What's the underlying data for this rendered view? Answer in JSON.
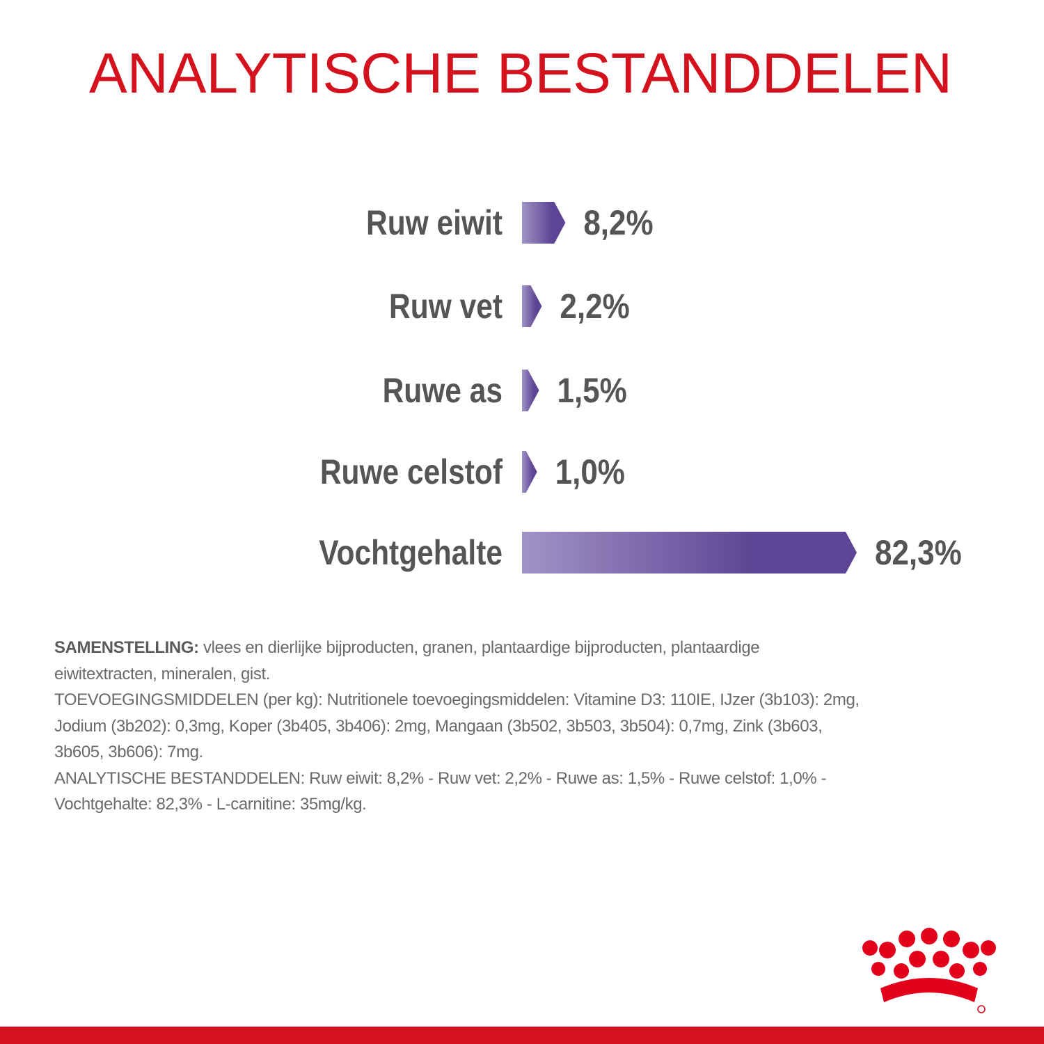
{
  "chart_data": {
    "type": "bar",
    "orientation": "horizontal",
    "title": "ANALYTISCHE BESTANDDELEN",
    "categories": [
      "Ruw eiwit",
      "Ruw vet",
      "Ruwe as",
      "Ruwe celstof",
      "Vochtgehalte"
    ],
    "values": [
      8.2,
      2.2,
      1.5,
      1.0,
      82.3
    ],
    "value_labels": [
      "8,2%",
      "2,2%",
      "1,5%",
      "1,0%",
      "82,3%"
    ],
    "colors": [
      "#a193c6",
      "#5d4494"
    ]
  },
  "composition": {
    "label": "SAMENSTELLING:",
    "lines": [
      "vlees en dierlijke bijproducten, granen, plantaardige bijproducten, plantaardige",
      "eiwitextracten, mineralen, gist.",
      "TOEVOEGINGSMIDDELEN (per kg): Nutritionele toevoegingsmiddelen: Vitamine D3: 110IE, IJzer (3b103): 2mg,",
      "Jodium (3b202): 0,3mg, Koper (3b405, 3b406): 2mg, Mangaan (3b502, 3b503, 3b504): 0,7mg, Zink (3b603,",
      "3b605, 3b606): 7mg.",
      "ANALYTISCHE BESTANDDELEN: Ruw eiwit: 8,2% - Ruw vet: 2,2% - Ruwe as: 1,5% - Ruwe celstof: 1,0% -",
      "Vochtgehalte: 82,3% - L-carnitine: 35mg/kg."
    ]
  }
}
